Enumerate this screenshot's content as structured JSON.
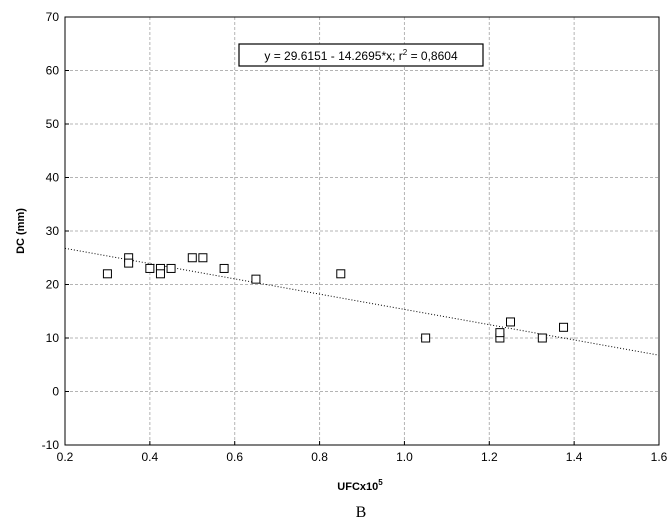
{
  "panel_label": "B",
  "chart_data": {
    "type": "scatter",
    "xlabel": "UFCx10",
    "xlabel_superscript": "5",
    "ylabel": "DC (mm)",
    "xlim": [
      0.2,
      1.6
    ],
    "ylim": [
      -10,
      70
    ],
    "x_ticks": [
      "0.2",
      "0.4",
      "0.6",
      "0.8",
      "1.0",
      "1.2",
      "1.4",
      "1.6"
    ],
    "y_ticks": [
      "-10",
      "0",
      "10",
      "20",
      "30",
      "40",
      "50",
      "60",
      "70"
    ],
    "grid": true,
    "points": [
      {
        "x": 0.3,
        "y": 22
      },
      {
        "x": 0.35,
        "y": 25
      },
      {
        "x": 0.35,
        "y": 24
      },
      {
        "x": 0.4,
        "y": 23
      },
      {
        "x": 0.425,
        "y": 23
      },
      {
        "x": 0.425,
        "y": 22
      },
      {
        "x": 0.45,
        "y": 23
      },
      {
        "x": 0.5,
        "y": 25
      },
      {
        "x": 0.525,
        "y": 25
      },
      {
        "x": 0.575,
        "y": 23
      },
      {
        "x": 0.65,
        "y": 21
      },
      {
        "x": 0.85,
        "y": 22
      },
      {
        "x": 1.05,
        "y": 10
      },
      {
        "x": 1.225,
        "y": 10
      },
      {
        "x": 1.225,
        "y": 11
      },
      {
        "x": 1.25,
        "y": 13
      },
      {
        "x": 1.325,
        "y": 10
      },
      {
        "x": 1.375,
        "y": 12
      }
    ],
    "fit": {
      "intercept": 29.6151,
      "slope": -14.2695
    },
    "equation": {
      "prefix": "y = 29.6151 - 14.2695*x; r",
      "superscript": "2",
      "suffix": " = 0,8604"
    }
  }
}
